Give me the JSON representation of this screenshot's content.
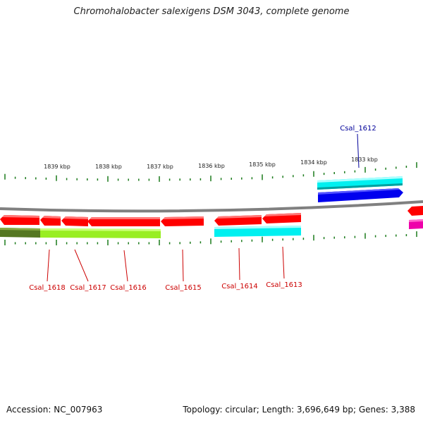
{
  "title": "Chromohalobacter salexigens DSM 3043, complete genome",
  "footer": {
    "accession": "Accession: NC_007963",
    "summary": "Topology: circular; Length: 3,696,649 bp; Genes: 3,388"
  },
  "colors": {
    "backbone": "#808080",
    "tick": "#1a7a1a",
    "gene_red": "#ff0000",
    "gene_label_red": "#cc0000",
    "gene_label_blue": "#000099",
    "cyan": "#00f0f0",
    "blue": "#0000ee",
    "lime": "#99ee22",
    "olive": "#557722",
    "magenta": "#ee00aa"
  },
  "scale_labels": [
    "1839 kbp",
    "1838 kbp",
    "1837 kbp",
    "1836 kbp",
    "1835 kbp",
    "1834 kbp",
    "1833 kbp"
  ],
  "gene_labels": [
    "Csal_1618",
    "Csal_1617",
    "Csal_1616",
    "Csal_1615",
    "Csal_1614",
    "Csal_1613",
    "Csal_1612"
  ]
}
